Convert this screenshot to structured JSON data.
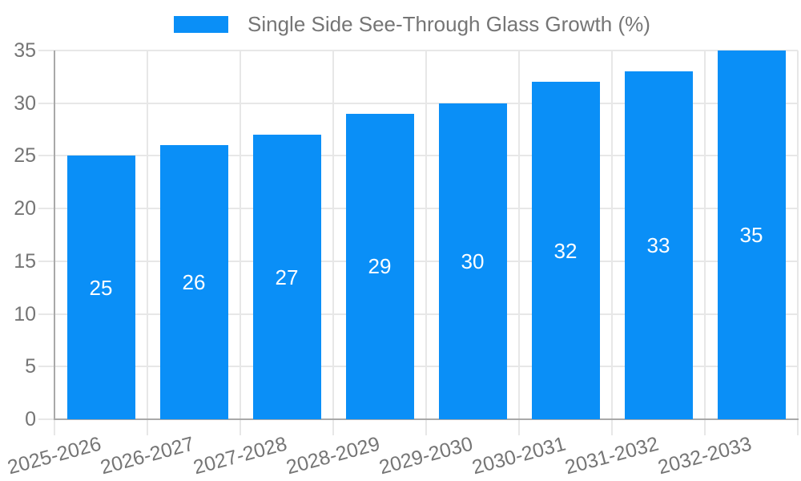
{
  "chart_data": {
    "type": "bar",
    "title": "Single Side See-Through Glass Growth (%)",
    "categories": [
      "2025-2026",
      "2026-2027",
      "2027-2028",
      "2028-2029",
      "2029-2030",
      "2030-2031",
      "2031-2032",
      "2032-2033"
    ],
    "values": [
      25,
      26,
      27,
      29,
      30,
      32,
      33,
      35
    ],
    "xlabel": "",
    "ylabel": "",
    "ylim": [
      0,
      35
    ],
    "yticks": [
      0,
      5,
      10,
      15,
      20,
      25,
      30,
      35
    ],
    "grid": true,
    "legend_position": "top-center",
    "bar_labels_visible": true,
    "colors": {
      "bar": "#0a8ff7",
      "bar_label": "#ffffff",
      "axis_text": "#757575",
      "grid_line": "#e7e7e7",
      "axis_line": "#a9a9a9",
      "background": "#ffffff"
    }
  }
}
